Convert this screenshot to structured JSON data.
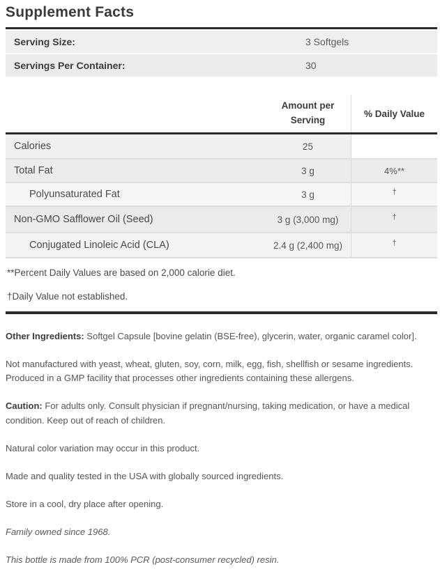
{
  "title": "Supplement Facts",
  "serving_info": {
    "rows": [
      {
        "label": "Serving Size:",
        "value": "3 Softgels"
      },
      {
        "label": "Servings Per Container:",
        "value": "30"
      }
    ]
  },
  "table": {
    "columns": {
      "amount": "Amount per Serving",
      "daily_value": "% Daily Value"
    },
    "rows": [
      {
        "name": "Calories",
        "amount": "25",
        "dv": ""
      },
      {
        "name": "Total Fat",
        "amount": "3 g",
        "dv": "4%**"
      },
      {
        "name": "Polyunsaturated Fat",
        "amount": "3 g",
        "dv": "†"
      },
      {
        "name": "Non-GMO Safflower Oil (Seed)",
        "amount": "3 g (3,000 mg)",
        "dv": "†"
      },
      {
        "name": "Conjugated Linoleic Acid (CLA)",
        "amount": "2.4 g (2,400 mg)",
        "dv": "†"
      }
    ],
    "footnotes": [
      "**Percent Daily Values are based on 2,000 calorie diet.",
      "†Daily Value not established."
    ]
  },
  "paragraphs": {
    "other_ingredients": {
      "label": "Other Ingredients:",
      "text": " Softgel Capsule [bovine gelatin (BSE-free), glycerin, water, organic caramel color]."
    },
    "allergens": "Not manufactured with yeast, wheat, gluten, soy, corn, milk, egg, fish, shellfish or sesame ingredients. Produced in a GMP facility that processes other ingredients containing these allergens.",
    "caution": {
      "label": "Caution:",
      "text": " For adults only. Consult physician if pregnant/nursing, taking medication, or have a medical condition. Keep out of reach of children."
    },
    "color_variation": "Natural color variation may occur in this product.",
    "made_in": "Made and quality tested in the USA with globally sourced ingredients.",
    "storage": "Store in a cool, dry place after opening.",
    "family": "Family owned since 1968.",
    "bottle": "This bottle is made from 100% PCR (post-consumer recycled) resin."
  },
  "colors": {
    "rule": "#2b2b2b",
    "row_grey_dark": "#ececec",
    "row_grey_light": "#f6f6f6",
    "divider": "#dedede",
    "text_heading": "#3c3c3c",
    "text_body": "#555555"
  }
}
